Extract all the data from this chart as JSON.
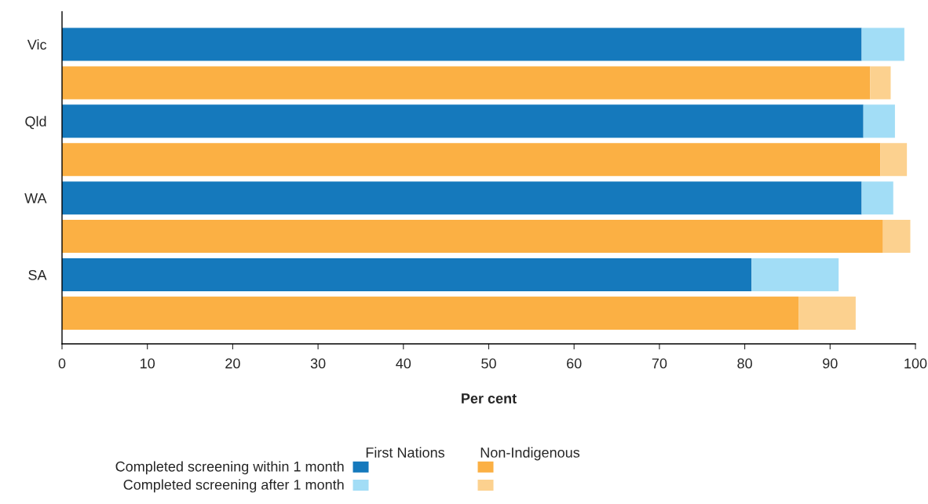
{
  "chart_data": {
    "type": "bar",
    "orientation": "horizontal",
    "stacked": true,
    "xlabel": "Per cent",
    "categories": [
      "Vic",
      null,
      "Qld",
      null,
      "WA",
      null,
      "SA",
      null
    ],
    "series": [
      {
        "name": "Completed screening within 1 month",
        "colors": [
          "#1579bc",
          "#fbb044",
          "#1579bc",
          "#fbb044",
          "#1579bc",
          "#fbb044",
          "#1579bc",
          "#fbb044"
        ],
        "values": [
          93.7,
          94.7,
          93.9,
          95.9,
          93.7,
          96.2,
          80.8,
          86.3
        ]
      },
      {
        "name": "Completed screening after 1 month",
        "colors": [
          "#a2ddf6",
          "#fcd18f",
          "#a2ddf6",
          "#fcd18f",
          "#a2ddf6",
          "#fcd18f",
          "#a2ddf6",
          "#fcd18f"
        ],
        "values": [
          5.0,
          2.4,
          3.7,
          3.1,
          3.7,
          3.2,
          10.2,
          6.7
        ]
      }
    ],
    "annotations": [
      "First Nations",
      "Non-Indigenous"
    ],
    "xlim": [
      0,
      100
    ],
    "xticks": [
      0,
      10,
      20,
      30,
      40,
      50,
      60,
      70,
      80,
      90,
      100
    ],
    "legend": "bottom"
  }
}
